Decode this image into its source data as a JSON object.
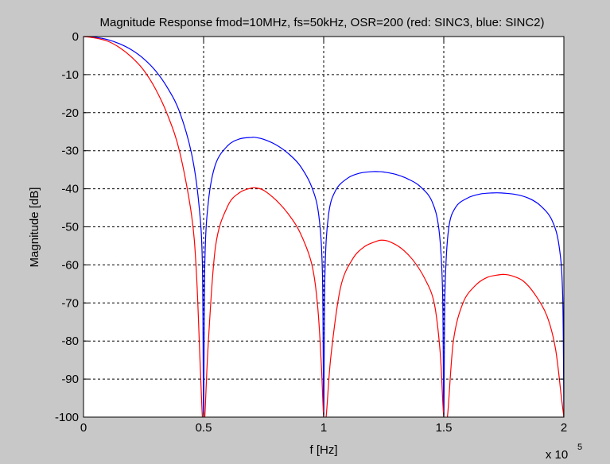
{
  "chart_data": {
    "type": "line",
    "title": "Magnitude Response fmod=10MHz, fs=50kHz, OSR=200 (red: SINC3, blue: SINC2)",
    "xlabel": "f [Hz]",
    "ylabel": "Magnitude [dB]",
    "x_multiplier_base": "x 10",
    "x_multiplier_exp": "5",
    "xlim": [
      0,
      200000
    ],
    "ylim": [
      -100,
      0
    ],
    "x_ticks": [
      0,
      50000,
      100000,
      150000,
      200000
    ],
    "x_tick_labels": [
      "0",
      "0.5",
      "1",
      "1.5",
      "2"
    ],
    "y_ticks": [
      0,
      -10,
      -20,
      -30,
      -40,
      -50,
      -60,
      -70,
      -80,
      -90,
      -100
    ],
    "y_tick_labels": [
      "0",
      "-10",
      "-20",
      "-30",
      "-40",
      "-50",
      "-60",
      "-70",
      "-80",
      "-90",
      "-100"
    ],
    "grid": true,
    "series": [
      {
        "color": "#0000ff",
        "x": [
          0,
          5000,
          10000,
          15000,
          20000,
          25000,
          30000,
          35000,
          40000,
          45000,
          48000,
          49500,
          50000,
          50500,
          52000,
          55000,
          60000,
          65000,
          70000,
          71500,
          75000,
          80000,
          85000,
          90000,
          95000,
          98000,
          99500,
          100000,
          100500,
          102000,
          105000,
          110000,
          115000,
          120000,
          123000,
          125000,
          130000,
          135000,
          140000,
          145000,
          148000,
          149500,
          150000,
          150500,
          152000,
          155000,
          160000,
          165000,
          170000,
          174000,
          180000,
          185000,
          190000,
          195000,
          198000,
          199500,
          200000
        ],
        "values": [
          0,
          -0.2,
          -0.8,
          -1.9,
          -3.5,
          -5.8,
          -9,
          -13.5,
          -19.8,
          -30.8,
          -43.8,
          -60,
          -100,
          -60,
          -43.3,
          -33.5,
          -28.7,
          -26.9,
          -26.5,
          -26.5,
          -27,
          -28.4,
          -30.6,
          -33.8,
          -39.5,
          -47.2,
          -63,
          -100,
          -63,
          -46.9,
          -40.4,
          -37.2,
          -35.9,
          -35.5,
          -35.5,
          -35.6,
          -36.2,
          -37.4,
          -39.3,
          -43.2,
          -50.8,
          -67,
          -100,
          -67,
          -50.6,
          -44.8,
          -42.4,
          -41.4,
          -41.1,
          -41.1,
          -41.5,
          -42.4,
          -44.3,
          -48.2,
          -55,
          -68,
          -100
        ]
      },
      {
        "color": "#ff0000",
        "x": [
          0,
          5000,
          10000,
          15000,
          20000,
          25000,
          30000,
          35000,
          40000,
          45000,
          47000,
          48500,
          49500,
          50000,
          50500,
          52000,
          55000,
          60000,
          65000,
          70000,
          72000,
          75000,
          80000,
          85000,
          90000,
          95000,
          97500,
          99000,
          100000,
          101000,
          103000,
          107000,
          112000,
          117000,
          122000,
          124000,
          127000,
          132000,
          137000,
          142000,
          146000,
          148500,
          150000,
          151500,
          154000,
          158000,
          163000,
          168000,
          173000,
          175000,
          178000,
          183000,
          188000,
          193000,
          196500,
          199000,
          200000
        ],
        "values": [
          0,
          -0.4,
          -1.2,
          -2.9,
          -5.4,
          -8.8,
          -13.8,
          -20.6,
          -30.2,
          -47,
          -62,
          -85,
          -100,
          -100,
          -100,
          -80,
          -55,
          -44.6,
          -41,
          -39.8,
          -39.8,
          -40.4,
          -42.9,
          -46.4,
          -51.3,
          -59.7,
          -71,
          -86,
          -100,
          -100,
          -84,
          -66,
          -58.5,
          -55.2,
          -53.8,
          -53.5,
          -53.8,
          -55.5,
          -58.6,
          -63.5,
          -70,
          -83,
          -100,
          -100,
          -80,
          -70,
          -65.5,
          -63.3,
          -62.6,
          -62.5,
          -62.8,
          -64.2,
          -67.8,
          -73.5,
          -82,
          -95,
          -100
        ]
      }
    ]
  }
}
